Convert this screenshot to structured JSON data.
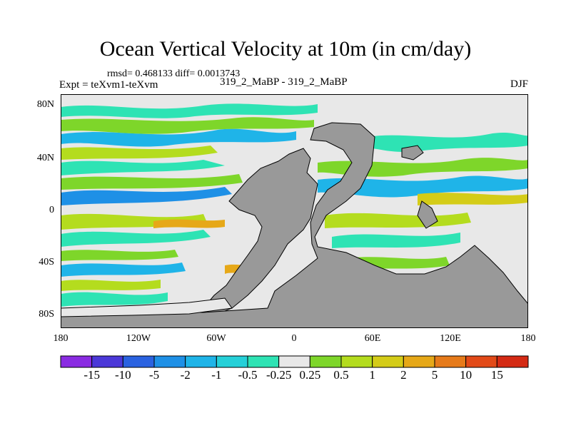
{
  "title": "Ocean Vertical Velocity at 10m (in cm/day)",
  "stats": "rmsd= 0.468133 diff= 0.0013743",
  "experiment": "Expt = teXvm1-teXvm",
  "runs": "319_2_MaBP - 319_2_MaBP",
  "season": "DJF",
  "lat_ticks": [
    "80N",
    "40N",
    "0",
    "40S",
    "80S"
  ],
  "lon_ticks": [
    "180",
    "120W",
    "60W",
    "0",
    "60E",
    "120E",
    "180"
  ],
  "colorbar": {
    "labels": [
      "-15",
      "-10",
      "-5",
      "-2",
      "-1",
      "-0.5",
      "-0.25",
      "0.25",
      "0.5",
      "1",
      "2",
      "5",
      "10",
      "15"
    ],
    "colors": [
      "#8a2be2",
      "#4b38d8",
      "#2a62e0",
      "#1e90e6",
      "#1fb4e8",
      "#25d0d8",
      "#2ee3b4",
      "#e8e8e8",
      "#7ed62a",
      "#b4dc1e",
      "#d4cc18",
      "#e6a818",
      "#e67a1a",
      "#e24a18",
      "#d42a14"
    ]
  },
  "land_color": "#999999"
}
